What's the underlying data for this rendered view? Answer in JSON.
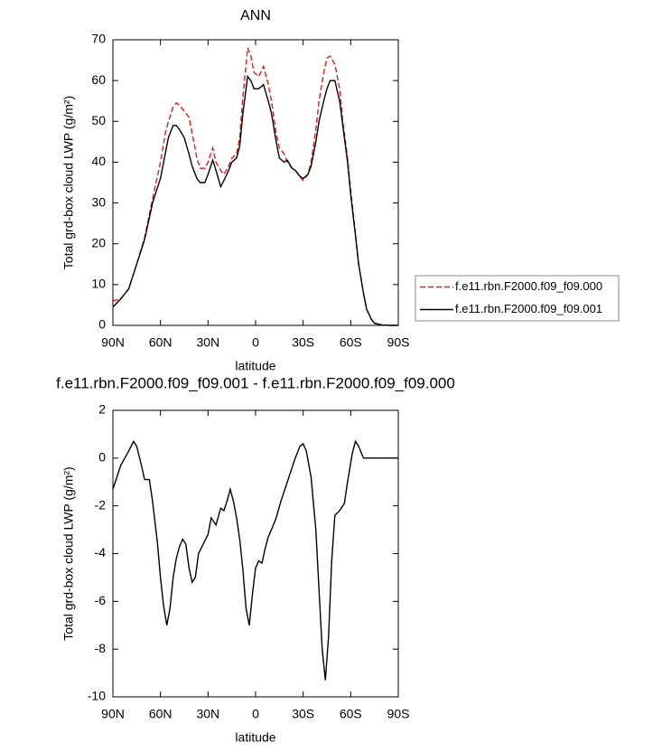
{
  "chart_data": [
    {
      "type": "line",
      "title": "ANN",
      "x_label": "latitude",
      "y_label": "Total grd-box cloud LWP (g/m²)",
      "x": [
        90,
        85,
        80,
        75,
        70,
        65,
        60,
        57,
        55,
        52,
        50,
        48,
        45,
        42,
        40,
        37,
        35,
        32,
        30,
        27,
        25,
        22,
        20,
        17,
        15,
        12,
        10,
        8,
        5,
        3,
        1,
        -2,
        -5,
        -8,
        -10,
        -13,
        -15,
        -18,
        -20,
        -23,
        -25,
        -28,
        -30,
        -33,
        -35,
        -38,
        -40,
        -43,
        -45,
        -47,
        -50,
        -53,
        -55,
        -58,
        -60,
        -63,
        -65,
        -68,
        -70,
        -73,
        -75,
        -80,
        -85,
        -90
      ],
      "series": [
        {
          "name": "f.e11.rbn.F2000.f09_f09.000",
          "color": "#e41a1c",
          "dash": true,
          "values": [
            6,
            6.5,
            9,
            15,
            21.5,
            31,
            40,
            47,
            50,
            53.5,
            54.5,
            54,
            52.5,
            51,
            47,
            41,
            38.5,
            38.5,
            40,
            43.5,
            40,
            38,
            37,
            39,
            41,
            42,
            46,
            56,
            68,
            66,
            62,
            61,
            63.5,
            59,
            55,
            47,
            43.5,
            42,
            40,
            38.5,
            38,
            36.5,
            35.5,
            37,
            40,
            48,
            55,
            62,
            65.5,
            66,
            64,
            58,
            50,
            41,
            33,
            22.5,
            15,
            8,
            4,
            1.5,
            0.5,
            0.1,
            0,
            0
          ]
        },
        {
          "name": "f.e11.rbn.F2000.f09_f09.001",
          "color": "#000000",
          "dash": false,
          "values": [
            4.5,
            6.5,
            9,
            15,
            21,
            30,
            36,
            42,
            46,
            49,
            49,
            48,
            46,
            42,
            39,
            36,
            35,
            35,
            37,
            40.5,
            38,
            34,
            35.5,
            38,
            40,
            41,
            44,
            52,
            61,
            60,
            58,
            58,
            59,
            55,
            52,
            45,
            41,
            40,
            40.5,
            38.5,
            38,
            36.5,
            36,
            37,
            39,
            45,
            50,
            55,
            58,
            60,
            60,
            55,
            49,
            40,
            32,
            22,
            15,
            8,
            4,
            1.5,
            0.5,
            0.1,
            0,
            0
          ]
        }
      ],
      "xlim": [
        90,
        -90
      ],
      "xticks": [
        {
          "value": 90,
          "label": "90N"
        },
        {
          "value": 60,
          "label": "60N"
        },
        {
          "value": 30,
          "label": "30N"
        },
        0,
        {
          "value": -30,
          "label": "30S"
        },
        {
          "value": -60,
          "label": "60S"
        },
        {
          "value": -90,
          "label": "90S"
        }
      ],
      "ylim": [
        0,
        70
      ],
      "yticks": [
        0,
        10,
        20,
        30,
        40,
        50,
        60,
        70
      ],
      "legend": "right"
    },
    {
      "type": "line",
      "title": "f.e11.rbn.F2000.f09_f09.001 - f.e11.rbn.F2000.f09_f09.000",
      "x_label": "latitude",
      "y_label": "Total grd-box cloud LWP (g/m²)",
      "x": [
        90,
        85,
        80,
        77,
        75,
        72,
        70,
        67,
        65,
        62,
        60,
        58,
        56,
        54,
        52,
        50,
        48,
        46,
        44,
        42,
        40,
        38,
        36,
        33,
        30,
        28,
        25,
        22,
        20,
        18,
        16,
        14,
        12,
        10,
        8,
        6,
        4,
        2,
        0,
        -2,
        -4,
        -6,
        -8,
        -10,
        -13,
        -16,
        -20,
        -25,
        -28,
        -30,
        -32,
        -35,
        -38,
        -40,
        -42,
        -44,
        -46,
        -48,
        -50,
        -53,
        -56,
        -58,
        -61,
        -63,
        -65,
        -68,
        -72,
        -75,
        -80,
        -85,
        -90
      ],
      "series": [
        {
          "color": "#000000",
          "dash": false,
          "values": [
            -1.3,
            -0.3,
            0.3,
            0.7,
            0.5,
            -0.3,
            -0.9,
            -0.9,
            -1.8,
            -3.5,
            -5,
            -6.2,
            -7,
            -6.3,
            -5,
            -4.2,
            -3.7,
            -3.4,
            -3.6,
            -4.6,
            -5.2,
            -5,
            -4,
            -3.6,
            -3.2,
            -2.5,
            -2.8,
            -2.1,
            -2.2,
            -1.8,
            -1.3,
            -1.8,
            -2.5,
            -3.4,
            -4.7,
            -6.3,
            -7,
            -5.7,
            -4.6,
            -4.3,
            -4.4,
            -3.8,
            -3.3,
            -3,
            -2.5,
            -1.8,
            -1,
            0,
            0.5,
            0.6,
            0.3,
            -0.8,
            -3,
            -5.5,
            -8,
            -9.3,
            -7.5,
            -4.3,
            -2.4,
            -2.2,
            -1.9,
            -1,
            0.2,
            0.7,
            0.5,
            0,
            0,
            0,
            0,
            0,
            0
          ]
        }
      ],
      "xlim": [
        90,
        -90
      ],
      "xticks": [
        {
          "value": 90,
          "label": "90N"
        },
        {
          "value": 60,
          "label": "60N"
        },
        {
          "value": 30,
          "label": "30N"
        },
        0,
        {
          "value": -30,
          "label": "30S"
        },
        {
          "value": -60,
          "label": "60S"
        },
        {
          "value": -90,
          "label": "90S"
        }
      ],
      "ylim": [
        -10,
        2
      ],
      "yticks": [
        -10,
        -8,
        -6,
        -4,
        -2,
        0,
        2
      ]
    }
  ]
}
